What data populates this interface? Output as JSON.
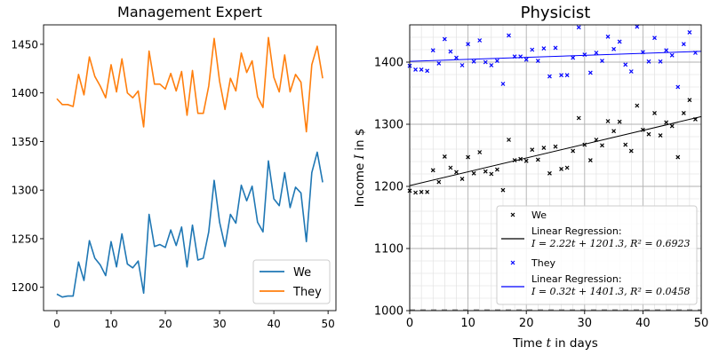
{
  "chart_data": [
    {
      "type": "line",
      "title": "Management Expert",
      "xlabel": "",
      "ylabel": "",
      "xlim": [
        -2.45,
        51.45
      ],
      "ylim": [
        1176,
        1470
      ],
      "xticks": [
        0,
        10,
        20,
        30,
        40,
        50
      ],
      "yticks": [
        1200,
        1250,
        1300,
        1350,
        1400,
        1450
      ],
      "grid": false,
      "legend_position": "bottom-right",
      "x": [
        0,
        1,
        2,
        3,
        4,
        5,
        6,
        7,
        8,
        9,
        10,
        11,
        12,
        13,
        14,
        15,
        16,
        17,
        18,
        19,
        20,
        21,
        22,
        23,
        24,
        25,
        26,
        27,
        28,
        29,
        30,
        31,
        32,
        33,
        34,
        35,
        36,
        37,
        38,
        39,
        40,
        41,
        42,
        43,
        44,
        45,
        46,
        47,
        48,
        49
      ],
      "series": [
        {
          "name": "We",
          "color": "#1f77b4",
          "values": [
            1193,
            1190,
            1191,
            1191,
            1226,
            1207,
            1248,
            1230,
            1223,
            1212,
            1247,
            1221,
            1255,
            1224,
            1220,
            1227,
            1194,
            1275,
            1242,
            1244,
            1241,
            1259,
            1243,
            1262,
            1221,
            1264,
            1228,
            1230,
            1257,
            1310,
            1267,
            1242,
            1275,
            1266,
            1305,
            1289,
            1304,
            1267,
            1257,
            1330,
            1291,
            1284,
            1318,
            1282,
            1303,
            1297,
            1247,
            1318,
            1339,
            1308
          ]
        },
        {
          "name": "They",
          "color": "#ff7f0e",
          "values": [
            1394,
            1388,
            1388,
            1386,
            1419,
            1398,
            1437,
            1417,
            1407,
            1395,
            1429,
            1401,
            1435,
            1400,
            1395,
            1402,
            1365,
            1443,
            1409,
            1409,
            1404,
            1420,
            1402,
            1422,
            1377,
            1423,
            1379,
            1379,
            1407,
            1456,
            1412,
            1383,
            1415,
            1402,
            1441,
            1421,
            1433,
            1396,
            1385,
            1457,
            1416,
            1401,
            1439,
            1401,
            1419,
            1411,
            1360,
            1429,
            1448,
            1415
          ]
        }
      ]
    },
    {
      "type": "scatter",
      "title": "Physicist",
      "xlabel_prefix": "Time ",
      "xlabel_var": "t",
      "xlabel_suffix": " in days",
      "ylabel_prefix": "Income ",
      "ylabel_var": "I",
      "ylabel_suffix": " in $",
      "xlim": [
        0,
        50
      ],
      "ylim": [
        1000,
        1460
      ],
      "xticks": [
        0,
        10,
        20,
        30,
        40,
        50
      ],
      "yticks": [
        1000,
        1100,
        1200,
        1300,
        1400
      ],
      "grid": true,
      "minor_grid": true,
      "legend_position": "bottom-right",
      "x": [
        0,
        1,
        2,
        3,
        4,
        5,
        6,
        7,
        8,
        9,
        10,
        11,
        12,
        13,
        14,
        15,
        16,
        17,
        18,
        19,
        20,
        21,
        22,
        23,
        24,
        25,
        26,
        27,
        28,
        29,
        30,
        31,
        32,
        33,
        34,
        35,
        36,
        37,
        38,
        39,
        40,
        41,
        42,
        43,
        44,
        45,
        46,
        47,
        48,
        49
      ],
      "series": [
        {
          "name": "We",
          "color": "#000000",
          "marker": "x",
          "values": [
            1193,
            1190,
            1191,
            1191,
            1226,
            1207,
            1248,
            1230,
            1223,
            1212,
            1247,
            1221,
            1255,
            1224,
            1220,
            1227,
            1194,
            1275,
            1242,
            1244,
            1241,
            1259,
            1243,
            1262,
            1221,
            1264,
            1228,
            1230,
            1257,
            1310,
            1267,
            1242,
            1275,
            1266,
            1305,
            1289,
            1304,
            1267,
            1257,
            1330,
            1291,
            1284,
            1318,
            1282,
            1303,
            1297,
            1247,
            1318,
            1339,
            1308
          ],
          "fit": {
            "slope": 2.22,
            "intercept": 1201.3,
            "label": "Linear Regression:",
            "eq": "I = 2.22t + 1201.3,  R² = 0.6923"
          }
        },
        {
          "name": "They",
          "color": "#0000ff",
          "marker": "x",
          "values": [
            1394,
            1388,
            1388,
            1386,
            1419,
            1398,
            1437,
            1417,
            1407,
            1395,
            1429,
            1401,
            1435,
            1400,
            1395,
            1402,
            1365,
            1443,
            1409,
            1409,
            1404,
            1420,
            1402,
            1422,
            1377,
            1423,
            1379,
            1379,
            1407,
            1456,
            1412,
            1383,
            1415,
            1402,
            1441,
            1421,
            1433,
            1396,
            1385,
            1457,
            1416,
            1401,
            1439,
            1401,
            1419,
            1411,
            1360,
            1429,
            1448,
            1415
          ],
          "fit": {
            "slope": 0.32,
            "intercept": 1401.3,
            "label": "Linear Regression:",
            "eq": "I = 0.32t + 1401.3,  R² = 0.0458"
          }
        }
      ]
    }
  ]
}
